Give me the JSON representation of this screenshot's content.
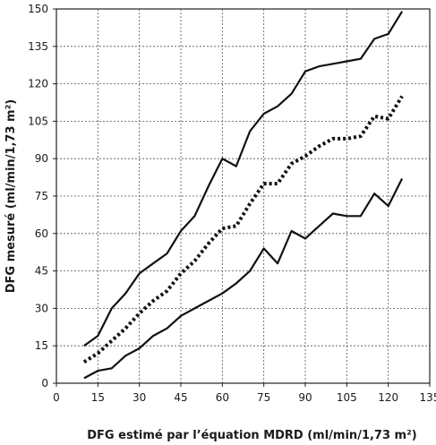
{
  "chart_data": {
    "type": "line",
    "title": "",
    "xlabel": "DFG estimé par l’équation MDRD (ml/min/1,73 m²)",
    "ylabel": "DFG mesuré (ml/min/1,73 m²)",
    "xlim": [
      0,
      135
    ],
    "ylim": [
      0,
      150
    ],
    "xticks": [
      0,
      15,
      30,
      45,
      60,
      75,
      90,
      105,
      120,
      135
    ],
    "yticks": [
      0,
      15,
      30,
      45,
      60,
      75,
      90,
      105,
      120,
      135,
      150
    ],
    "grid": true,
    "legend": "none",
    "series": [
      {
        "style": "solid",
        "color": "#111111",
        "x": [
          10,
          15,
          20,
          25,
          30,
          35,
          40,
          45,
          50,
          55,
          60,
          65,
          70,
          75,
          80,
          85,
          90,
          95,
          100,
          105,
          110,
          115,
          120,
          125
        ],
        "y": [
          15,
          19,
          30,
          36,
          44,
          48,
          52,
          61,
          67,
          79,
          90,
          87,
          101,
          108,
          111,
          116,
          125,
          127,
          128,
          129,
          130,
          138,
          140,
          149
        ]
      },
      {
        "style": "dotted",
        "color": "#111111",
        "x": [
          10,
          15,
          20,
          25,
          30,
          35,
          40,
          45,
          50,
          55,
          60,
          65,
          70,
          75,
          80,
          85,
          90,
          95,
          100,
          105,
          110,
          115,
          120,
          125
        ],
        "y": [
          8.5,
          12,
          17,
          22,
          28,
          33,
          37,
          44,
          49,
          56,
          62,
          63,
          72,
          80,
          80,
          88,
          91,
          95,
          98,
          98,
          99,
          107,
          106,
          115
        ]
      },
      {
        "style": "solid",
        "color": "#111111",
        "x": [
          10,
          15,
          20,
          25,
          30,
          35,
          40,
          45,
          50,
          55,
          60,
          65,
          70,
          75,
          80,
          85,
          90,
          95,
          100,
          105,
          110,
          115,
          120,
          125
        ],
        "y": [
          2,
          5,
          6,
          11,
          14,
          19,
          22,
          27,
          30,
          33,
          36,
          40,
          45,
          54,
          48,
          61,
          58,
          63,
          68,
          67,
          67,
          76,
          71,
          82
        ]
      }
    ]
  }
}
